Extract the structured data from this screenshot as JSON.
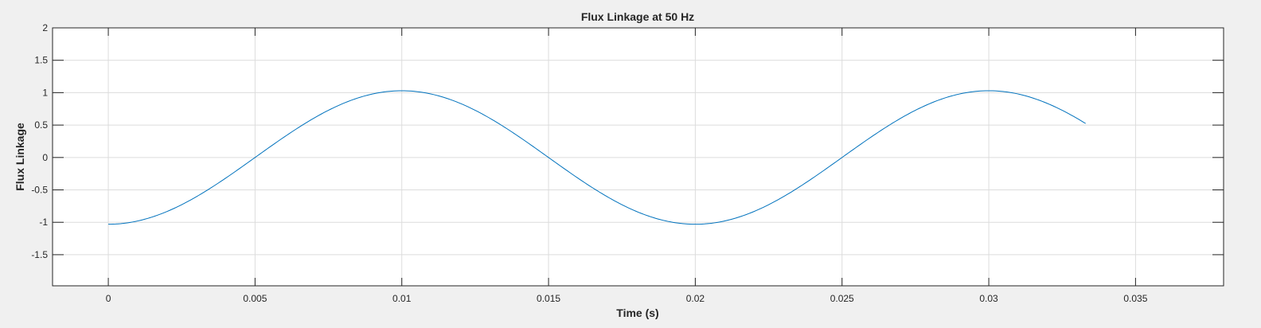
{
  "chart_data": {
    "type": "line",
    "title": "Flux Linkage at 50 Hz",
    "xlabel": "Time (s)",
    "ylabel": "Flux Linkage",
    "xlim": [
      -0.0019,
      0.038
    ],
    "ylim": [
      -1.98,
      2.0
    ],
    "xticks": [
      0,
      0.005,
      0.01,
      0.015,
      0.02,
      0.025,
      0.03,
      0.035
    ],
    "xtick_labels": [
      "0",
      "0.005",
      "0.01",
      "0.015",
      "0.02",
      "0.025",
      "0.03",
      "0.035"
    ],
    "yticks": [
      -1.5,
      -1,
      -0.5,
      0,
      0.5,
      1,
      1.5,
      2
    ],
    "ytick_labels": [
      "-1.5",
      "-1",
      "-0.5",
      "0",
      "0.5",
      "1",
      "1.5",
      "2"
    ],
    "grid": true,
    "series": [
      {
        "color": "#0072bd",
        "function": "-1.03*cos(2*pi*50*t)",
        "x_range": [
          0,
          0.0333
        ],
        "x": [
          0,
          0.0025,
          0.005,
          0.0075,
          0.01,
          0.0125,
          0.015,
          0.0175,
          0.02,
          0.0225,
          0.025,
          0.0275,
          0.03,
          0.0333
        ],
        "y": [
          -1.03,
          -0.73,
          0.0,
          0.73,
          1.03,
          0.73,
          0.0,
          -0.73,
          -1.03,
          -0.73,
          0.0,
          0.73,
          1.03,
          0.52
        ]
      }
    ]
  }
}
